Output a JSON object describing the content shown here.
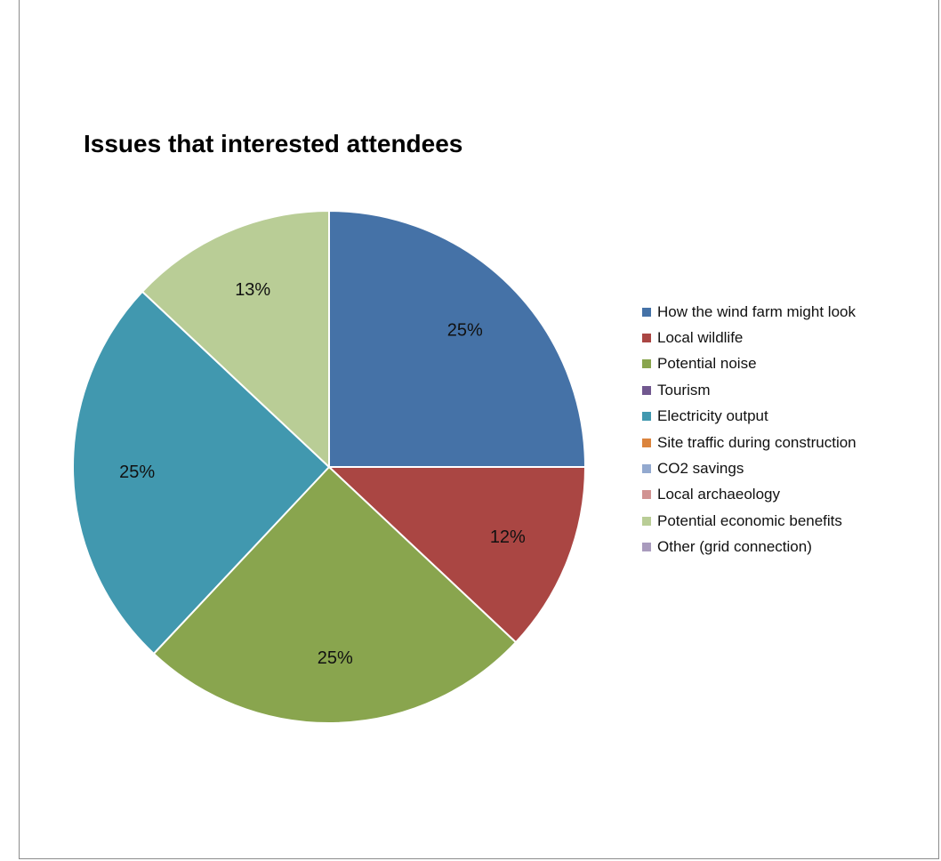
{
  "chart_data": {
    "type": "pie",
    "title": "Issues that interested attendees",
    "categories": [
      "How the wind farm might look",
      "Local wildlife",
      "Potential noise",
      "Tourism",
      "Electricity output",
      "Site traffic during construction",
      "CO2 savings",
      "Local archaeology",
      "Potential economic benefits",
      "Other (grid connection)"
    ],
    "values": [
      25,
      12,
      25,
      0,
      25,
      0,
      0,
      0,
      13,
      0
    ],
    "data_labels": [
      "25%",
      "12%",
      "25%",
      "",
      "25%",
      "",
      "",
      "",
      "13%",
      ""
    ],
    "colors": [
      "#4572a7",
      "#aa4643",
      "#89a54e",
      "#71588f",
      "#4198af",
      "#db843d",
      "#93a9cf",
      "#d19392",
      "#b9cd96",
      "#a99bbd"
    ],
    "legend_position": "right"
  }
}
